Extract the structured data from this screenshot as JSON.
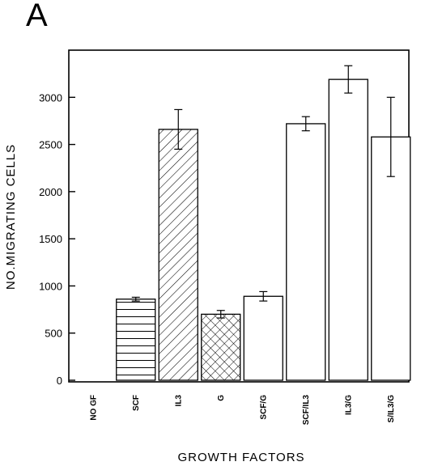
{
  "panel_label": "A",
  "chart_data": {
    "type": "bar",
    "title": "",
    "xlabel": "GROWTH FACTORS",
    "ylabel": "NO.MIGRATING CELLS",
    "ylim": [
      0,
      3500
    ],
    "yticks": [
      0,
      500,
      1000,
      1500,
      2000,
      2500,
      3000
    ],
    "grid": false,
    "categories": [
      "NO GF",
      "SCF",
      "IL3",
      "G",
      "SCF/G",
      "SCF/IL3",
      "IL3/G",
      "S/IL3/G"
    ],
    "values": [
      0,
      860,
      2660,
      700,
      890,
      2720,
      3190,
      2580
    ],
    "errors": [
      0,
      20,
      210,
      40,
      50,
      75,
      145,
      420
    ],
    "fills": [
      "none",
      "horizontal-lines",
      "diagonal-lines",
      "crosshatch",
      "white",
      "white",
      "white",
      "white"
    ]
  }
}
